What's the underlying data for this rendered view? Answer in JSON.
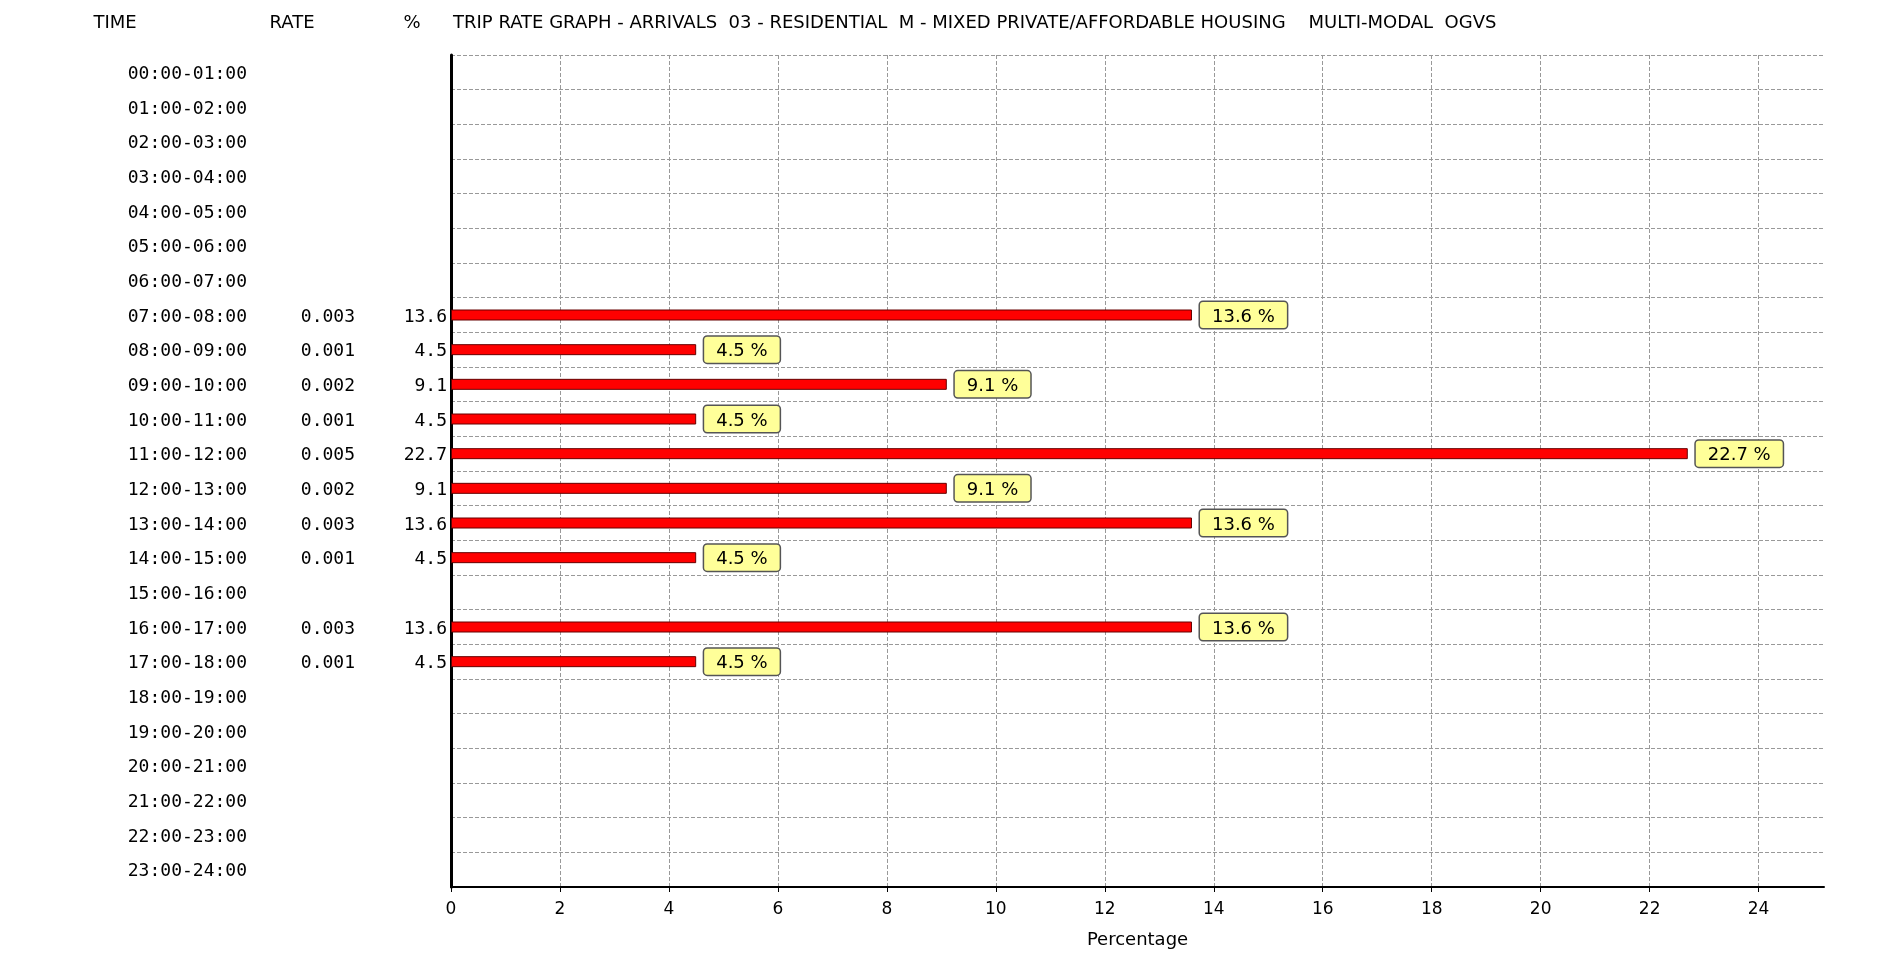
{
  "chart_data": {
    "type": "bar",
    "orientation": "horizontal",
    "title": "TRIP RATE GRAPH - ARRIVALS  03 - RESIDENTIAL  M - MIXED PRIVATE/AFFORDABLE HOUSING    MULTI-MODAL  OGVS",
    "xlabel": "Percentage",
    "categories": [
      "00:00-01:00",
      "01:00-02:00",
      "02:00-03:00",
      "03:00-04:00",
      "04:00-05:00",
      "05:00-06:00",
      "06:00-07:00",
      "07:00-08:00",
      "08:00-09:00",
      "09:00-10:00",
      "10:00-11:00",
      "11:00-12:00",
      "12:00-13:00",
      "13:00-14:00",
      "14:00-15:00",
      "15:00-16:00",
      "16:00-17:00",
      "17:00-18:00",
      "18:00-19:00",
      "19:00-20:00",
      "20:00-21:00",
      "21:00-22:00",
      "22:00-23:00",
      "23:00-24:00"
    ],
    "values": [
      null,
      null,
      null,
      null,
      null,
      null,
      null,
      13.6,
      4.5,
      9.1,
      4.5,
      22.7,
      9.1,
      13.6,
      4.5,
      null,
      13.6,
      4.5,
      null,
      null,
      null,
      null,
      null,
      null
    ],
    "value_labels": [
      null,
      null,
      null,
      null,
      null,
      null,
      null,
      "13.6 %",
      "4.5 %",
      "9.1 %",
      "4.5 %",
      "22.7 %",
      "9.1 %",
      "13.6 %",
      "4.5 %",
      null,
      "13.6 %",
      "4.5 %",
      null,
      null,
      null,
      null,
      null,
      null
    ],
    "color": "#ff0000",
    "xlim": [
      0,
      25.2
    ],
    "xticks": [
      0,
      2,
      4,
      6,
      8,
      10,
      12,
      14,
      16,
      18,
      20,
      22,
      24
    ],
    "grid": true,
    "annotations": [
      "TIME",
      "RATE",
      "%",
      "0.003",
      "13.6",
      "0.001",
      "4.5",
      "0.002",
      "9.1",
      "0.001",
      "4.5",
      "0.005",
      "22.7",
      "0.002",
      "9.1",
      "0.003",
      "13.6",
      "0.001",
      "4.5",
      "0.003",
      "13.6",
      "0.001",
      "4.5"
    ]
  }
}
